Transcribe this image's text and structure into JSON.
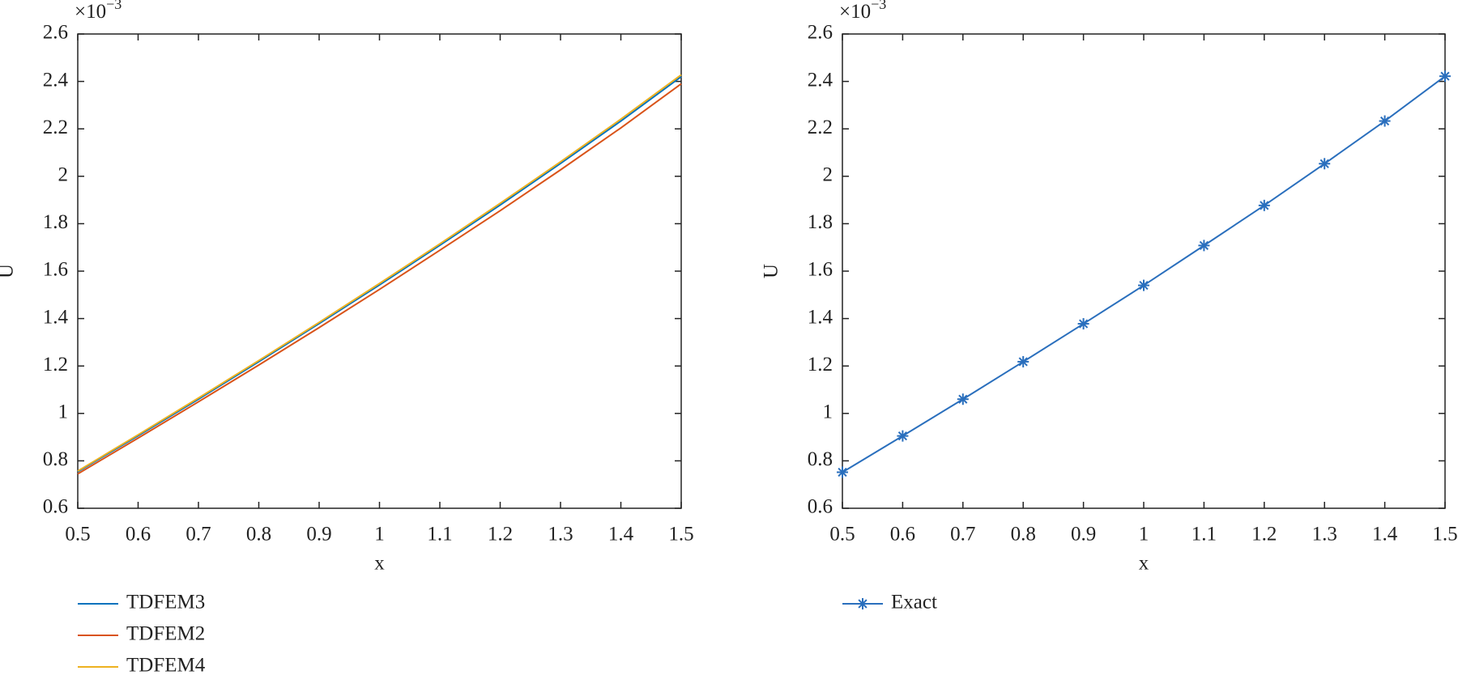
{
  "chart_data": [
    {
      "type": "line",
      "x_label": "x",
      "y_label": "U",
      "multiplier_base": "×10",
      "multiplier_exp": "−3",
      "x": [
        0.5,
        0.6,
        0.7,
        0.8,
        0.9,
        1.0,
        1.1,
        1.2,
        1.3,
        1.4,
        1.5
      ],
      "series": [
        {
          "name": "TDFEM3",
          "color": "#0072bd",
          "values": [
            0.754,
            0.906,
            1.06,
            1.218,
            1.379,
            1.542,
            1.709,
            1.879,
            2.054,
            2.233,
            2.42
          ]
        },
        {
          "name": "TDFEM2",
          "color": "#d95319",
          "values": [
            0.745,
            0.896,
            1.049,
            1.204,
            1.362,
            1.523,
            1.688,
            1.855,
            2.027,
            2.204,
            2.39
          ]
        },
        {
          "name": "TDFEM4",
          "color": "#edb120",
          "values": [
            0.757,
            0.91,
            1.065,
            1.223,
            1.384,
            1.548,
            1.715,
            1.886,
            2.061,
            2.241,
            2.428
          ]
        }
      ],
      "xlim": [
        0.5,
        1.5
      ],
      "xticks": [
        0.5,
        0.6,
        0.7,
        0.8,
        0.9,
        1,
        1.1,
        1.2,
        1.3,
        1.4,
        1.5
      ],
      "ylim": [
        0.6,
        2.6
      ],
      "yticks": [
        0.6,
        0.8,
        1,
        1.2,
        1.4,
        1.6,
        1.8,
        2,
        2.2,
        2.4,
        2.6
      ]
    },
    {
      "type": "line",
      "x_label": "x",
      "y_label": "U",
      "multiplier_base": "×10",
      "multiplier_exp": "−3",
      "marker": "asterisk",
      "x": [
        0.5,
        0.6,
        0.7,
        0.8,
        0.9,
        1.0,
        1.1,
        1.2,
        1.3,
        1.4,
        1.5
      ],
      "series": [
        {
          "name": "Exact",
          "color": "#2a6fbd",
          "values": [
            0.752,
            0.905,
            1.06,
            1.218,
            1.378,
            1.54,
            1.708,
            1.877,
            2.053,
            2.233,
            2.422
          ]
        }
      ],
      "xlim": [
        0.5,
        1.5
      ],
      "xticks": [
        0.5,
        0.6,
        0.7,
        0.8,
        0.9,
        1,
        1.1,
        1.2,
        1.3,
        1.4,
        1.5
      ],
      "ylim": [
        0.6,
        2.6
      ],
      "yticks": [
        0.6,
        0.8,
        1,
        1.2,
        1.4,
        1.6,
        1.8,
        2,
        2.2,
        2.4,
        2.6
      ]
    }
  ]
}
